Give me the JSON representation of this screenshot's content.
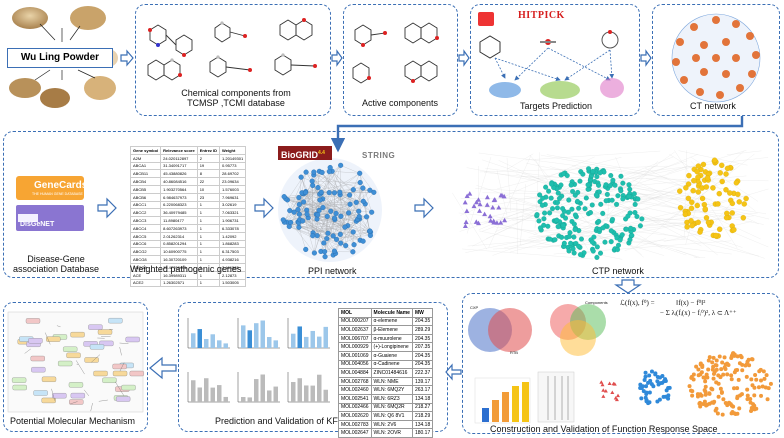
{
  "herb_box": {
    "label": "Wu Ling Powder"
  },
  "panels": {
    "chemical": {
      "caption_line1": "Chemical components from",
      "caption_line2": "TCMSP ,TCMI database"
    },
    "active": {
      "caption": "Active components"
    },
    "targets": {
      "caption": "Targets Prediction",
      "hitpick_logo": "HITPICK"
    },
    "ct": {
      "caption": "CT network"
    },
    "disease": {
      "caption_line1": "Disease-Gene",
      "caption_line2": "association Database",
      "genecards_logo": "GeneCards",
      "genecards_sub": "THE HUMAN GENE DATABASE",
      "disgenet_logo": "DisGeNET"
    },
    "weighted": {
      "caption": "Weighted pathogenic genes"
    },
    "ppi": {
      "caption": "PPI network",
      "biogrid_logo": "BioGRID",
      "biogrid_sup": "4.4",
      "string_logo": "STRING"
    },
    "ctp": {
      "caption": "CTP network"
    },
    "mechanism": {
      "caption": "Potential Molecular Mechanism"
    },
    "kfcg": {
      "caption": "Prediction and Validation of KFCG"
    },
    "frs": {
      "caption": "Construction and Validation of Function Response Space",
      "formula_line1": "ℒ(f(x), f⁰) =",
      "formula_line2": "‖f(x) − f⁰‖²",
      "formula_line3": "− Σ λᵢ(fᵢ(x) − fᵢ⁰)², λ ⊂ Λ⁺⁺",
      "venn_label_1": "CXP",
      "venn_label_2": "RTB",
      "venn_label_3": "Components"
    }
  },
  "weighted_table": {
    "headers": [
      "Gene symbol",
      "Relevance score",
      "Entrez ID",
      "Weight"
    ],
    "rows": [
      [
        "A2M",
        "24.020112897",
        "2",
        "1.20149301"
      ],
      [
        "ABCA1",
        "31.34091717",
        "19",
        "0.95773"
      ],
      [
        "ABCB11",
        "45.43880826",
        "8",
        "28.69702"
      ],
      [
        "ABCB4",
        "40.86084516",
        "22",
        "23.09634"
      ],
      [
        "ABCB5",
        "1.903270564",
        "10",
        "1.576003"
      ],
      [
        "ABCB6",
        "6.984637973",
        "23",
        "7.969631"
      ],
      [
        "ABCC1",
        "6.220068323",
        "1",
        "3.02619"
      ],
      [
        "ABCC2",
        "36.40979485",
        "1",
        "7.063321"
      ],
      [
        "ABCC3",
        "11.8980477",
        "1",
        "1.906731"
      ],
      [
        "ABCC4",
        "8.607263973",
        "1",
        "6.333078"
      ],
      [
        "ABCC5",
        "2.01262314",
        "1",
        "1.42092"
      ],
      [
        "ABCC6",
        "0.858201294",
        "1",
        "1.868283"
      ],
      [
        "ABCG2",
        "10.60900775",
        "1",
        "6.317503"
      ],
      [
        "ABCG8",
        "16.30720109",
        "1",
        "4.938216"
      ],
      [
        "ABCG8",
        "15.47709451",
        "1",
        "3.461565"
      ],
      [
        "ACE",
        "16.39989311",
        "1",
        "2.12873"
      ],
      [
        "ACE2",
        "1.26302571",
        "1",
        "1.503005"
      ]
    ]
  },
  "molecule_table": {
    "headers": [
      "MOL",
      "Molecule Name",
      "MW"
    ],
    "rows": [
      [
        "MOL000207",
        "α-elemene",
        "204.35"
      ],
      [
        "MOL002637",
        "β-Elemene",
        "289.29"
      ],
      [
        "MOL006707",
        "α-muurolene",
        "204.35"
      ],
      [
        "MOL000929",
        "(+)-Longipinene",
        "207.35"
      ],
      [
        "MOL001069",
        "α-Guaiene",
        "204.35"
      ],
      [
        "MOL004056",
        "α-Cadinene",
        "204.35"
      ],
      [
        "MOL004884",
        "ZINC01484616",
        "222.37"
      ],
      [
        "MOL002768",
        "WLN: NME",
        "139.17"
      ],
      [
        "MOL002460",
        "WLN: 6MQ2Y",
        "263.17"
      ],
      [
        "MOL002541",
        "WLN: 6RZ3",
        "134.18"
      ],
      [
        "MOL002466",
        "WLN: 6MQ2R",
        "218.27"
      ],
      [
        "MOL002620",
        "WLN: Q6 8V1",
        "218.29"
      ],
      [
        "MOL002783",
        "WLN: 2V6",
        "134.18"
      ],
      [
        "MOL002647",
        "WLN: 2OVR",
        "180.17"
      ]
    ]
  },
  "colors": {
    "panel_border": "#3b6fb5",
    "arrow": "#3b6fb5",
    "ct_node": "#e2743a",
    "ppi_node": "#3f8fd6",
    "ctp_purple": "#8b6fd6",
    "ctp_teal": "#1fbfae",
    "ctp_yellow": "#f5c416"
  }
}
